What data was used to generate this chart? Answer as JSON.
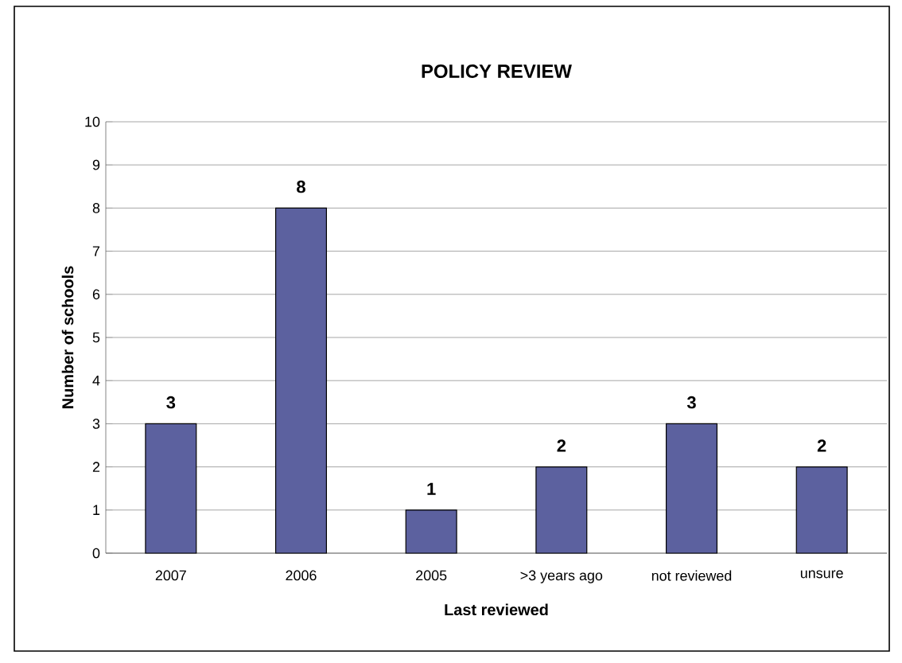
{
  "chart_data": {
    "type": "bar",
    "title": "POLICY REVIEW",
    "xlabel": "Last reviewed",
    "ylabel": "Number of schools",
    "categories": [
      "2007",
      "2006",
      "2005",
      ">3 years ago",
      "not reviewed",
      "unsure"
    ],
    "values": [
      3,
      8,
      1,
      2,
      3,
      2
    ],
    "color": "#5c619f",
    "ylim": [
      0,
      10
    ],
    "yticks": [
      0,
      1,
      2,
      3,
      4,
      5,
      6,
      7,
      8,
      9,
      10
    ],
    "grid": "y",
    "data_labels": true
  }
}
